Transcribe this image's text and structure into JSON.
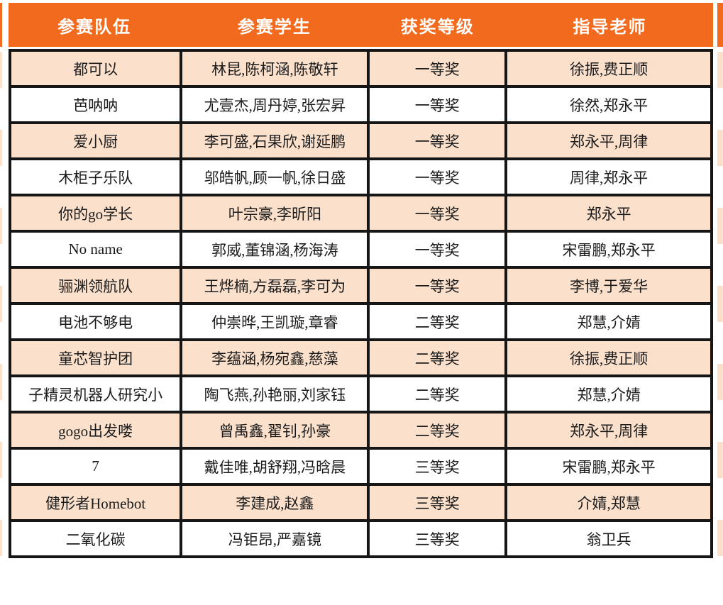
{
  "colors": {
    "header_bg": "#F26A1E",
    "header_text": "#FFFFFF",
    "row_stripe": "#FBE0CC",
    "row_plain": "#FFFFFF",
    "border": "#161616"
  },
  "table": {
    "headers": [
      "参赛队伍",
      "参赛学生",
      "获奖等级",
      "指导老师"
    ],
    "rows": [
      {
        "team": "都可以",
        "students": "林昆,陈柯涵,陈敬轩",
        "award": "一等奖",
        "teachers": "徐振,费正顺"
      },
      {
        "team": "芭呐呐",
        "students": "尤壹杰,周丹婷,张宏昇",
        "award": "一等奖",
        "teachers": "徐然,郑永平"
      },
      {
        "team": "爱小厨",
        "students": "李可盛,石果欣,谢延鹏",
        "award": "一等奖",
        "teachers": "郑永平,周律"
      },
      {
        "team": "木柜子乐队",
        "students": "邬皓帆,顾一帆,徐日盛",
        "award": "一等奖",
        "teachers": "周律,郑永平"
      },
      {
        "team": "你的go学长",
        "students": "叶宗豪,李昕阳",
        "award": "一等奖",
        "teachers": "郑永平"
      },
      {
        "team": "No name",
        "students": "郭威,董锦涵,杨海涛",
        "award": "一等奖",
        "teachers": "宋雷鹏,郑永平"
      },
      {
        "team": "骊渊领航队",
        "students": "王烨楠,方磊磊,李可为",
        "award": "一等奖",
        "teachers": "李博,于爱华"
      },
      {
        "team": "电池不够电",
        "students": "仲崇晔,王凯璇,章睿",
        "award": "二等奖",
        "teachers": "郑慧,介婧"
      },
      {
        "team": "童芯智护团",
        "students": "李蕴涵,杨宛鑫,慈藻",
        "award": "二等奖",
        "teachers": "徐振,费正顺"
      },
      {
        "team": "子精灵机器人研究小",
        "students": "陶飞燕,孙艳丽,刘家钰",
        "award": "二等奖",
        "teachers": "郑慧,介婧"
      },
      {
        "team": "gogo出发喽",
        "students": "曾禹鑫,翟钊,孙豪",
        "award": "二等奖",
        "teachers": "郑永平,周律"
      },
      {
        "team": "7",
        "students": "戴佳唯,胡舒翔,冯晗晨",
        "award": "三等奖",
        "teachers": "宋雷鹏,郑永平"
      },
      {
        "team": "健形者Homebot",
        "students": "李建成,赵鑫",
        "award": "三等奖",
        "teachers": "介婧,郑慧"
      },
      {
        "team": "二氧化碳",
        "students": "冯钜昂,严嘉镜",
        "award": "三等奖",
        "teachers": "翁卫兵"
      }
    ]
  }
}
